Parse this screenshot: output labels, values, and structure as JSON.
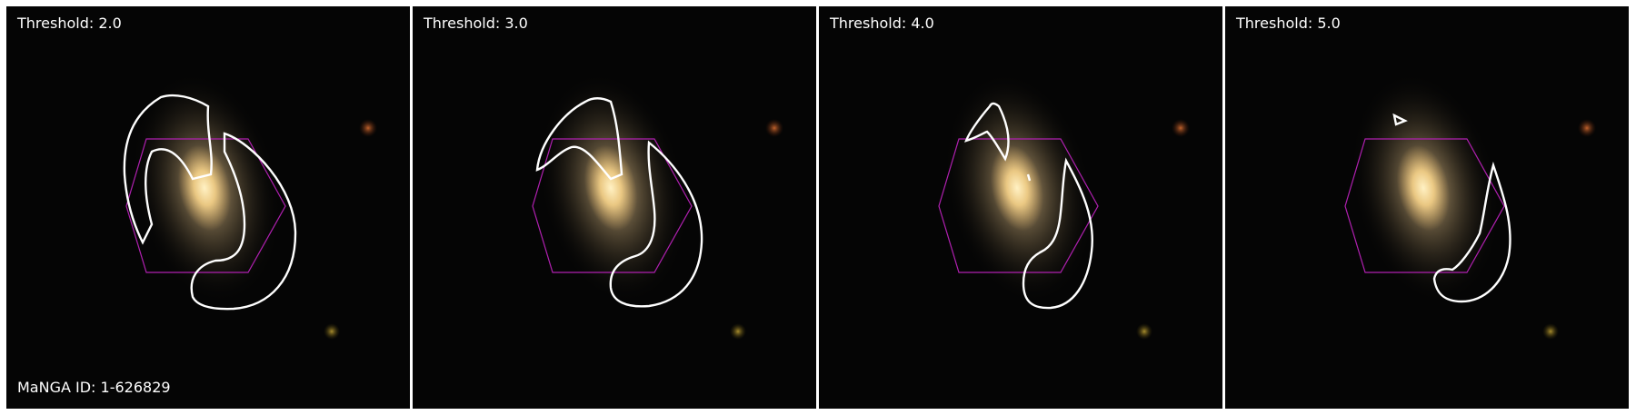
{
  "figure": {
    "manga_id": "MaNGA ID: 1-626829",
    "panels": [
      {
        "threshold_label": "Threshold: 2.0"
      },
      {
        "threshold_label": "Threshold: 3.0"
      },
      {
        "threshold_label": "Threshold: 4.0"
      },
      {
        "threshold_label": "Threshold: 5.0"
      }
    ]
  },
  "colors": {
    "background": "#050505",
    "galaxy_core": "#ffd98a",
    "galaxy_halo": "#8c7a55",
    "contour": "#ffffff",
    "ifu_hexagon": "#b020b0",
    "star_orange": "#b5582a",
    "star_yellow": "#a3882a"
  }
}
